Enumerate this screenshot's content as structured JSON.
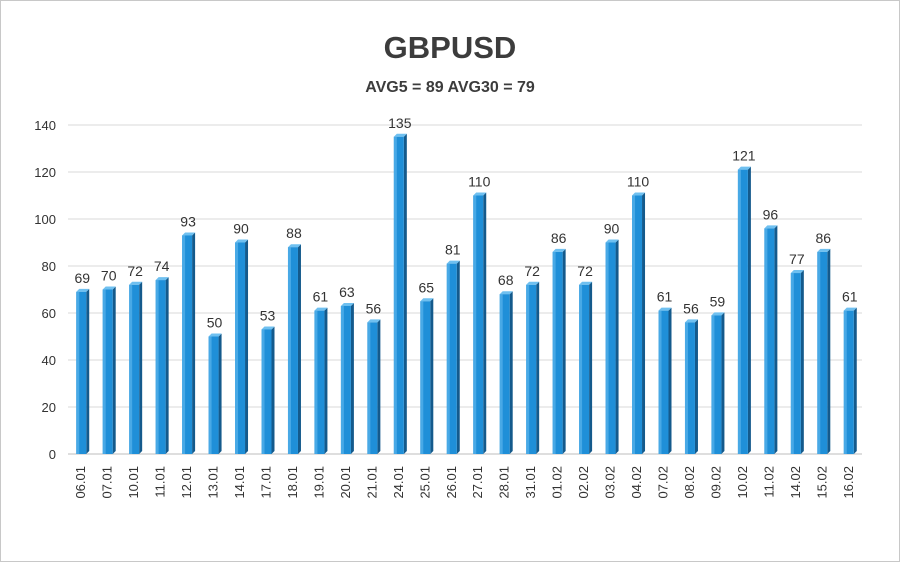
{
  "chart_data": {
    "type": "bar",
    "title": "GBPUSD",
    "subtitle": "AVG5 = 89 AVG30 = 79",
    "xlabel": "",
    "ylabel": "",
    "ylim": [
      0,
      140
    ],
    "yticks": [
      0,
      20,
      40,
      60,
      80,
      100,
      120,
      140
    ],
    "grid": true,
    "legend": "none",
    "bar_color": "#1f8fd8",
    "bar_color_dark": "#145a8c",
    "categories": [
      "06.01",
      "07.01",
      "10.01",
      "11.01",
      "12.01",
      "13.01",
      "14.01",
      "17.01",
      "18.01",
      "19.01",
      "20.01",
      "21.01",
      "24.01",
      "25.01",
      "26.01",
      "27.01",
      "28.01",
      "31.01",
      "01.02",
      "02.02",
      "03.02",
      "04.02",
      "07.02",
      "08.02",
      "09.02",
      "10.02",
      "11.02",
      "14.02",
      "15.02",
      "16.02"
    ],
    "values": [
      69,
      70,
      72,
      74,
      93,
      50,
      90,
      53,
      88,
      61,
      63,
      56,
      135,
      65,
      81,
      110,
      68,
      72,
      86,
      72,
      90,
      110,
      61,
      56,
      59,
      121,
      96,
      77,
      86,
      61
    ]
  }
}
